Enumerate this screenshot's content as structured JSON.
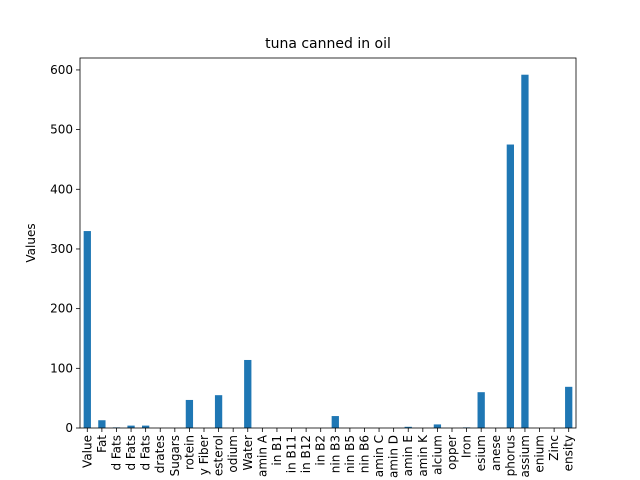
{
  "chart_data": {
    "type": "bar",
    "title": "tuna canned in oil",
    "xlabel": "",
    "ylabel": "Values",
    "ylim": [
      0,
      620
    ],
    "yticks": [
      0,
      100,
      200,
      300,
      400,
      500,
      600
    ],
    "grid": false,
    "legend": "none",
    "bar_color": "#1f77b4",
    "categories": [
      "Value",
      "Fat",
      "d Fats",
      "d Fats",
      "d Fats",
      "drates",
      "Sugars",
      "rotein",
      "y Fiber",
      "esterol",
      "odium",
      "Water",
      "amin A",
      "in B1",
      "in B11",
      "in B12",
      "in B2",
      "nin B3",
      "nin B5",
      "nin B6",
      "amin C",
      "amin D",
      "amin E",
      "amin K",
      "alcium",
      "opper",
      "Iron",
      "esium",
      "anese",
      "phorus",
      "assium",
      "enium",
      "Zinc",
      "ensity"
    ],
    "values": [
      330,
      13,
      1,
      4,
      4,
      0,
      0,
      47,
      0,
      55,
      0,
      114,
      0,
      0,
      0,
      0,
      0,
      20,
      0,
      0,
      0,
      0,
      2,
      0,
      6,
      0,
      1,
      60,
      0,
      475,
      592,
      0,
      0,
      69
    ]
  }
}
